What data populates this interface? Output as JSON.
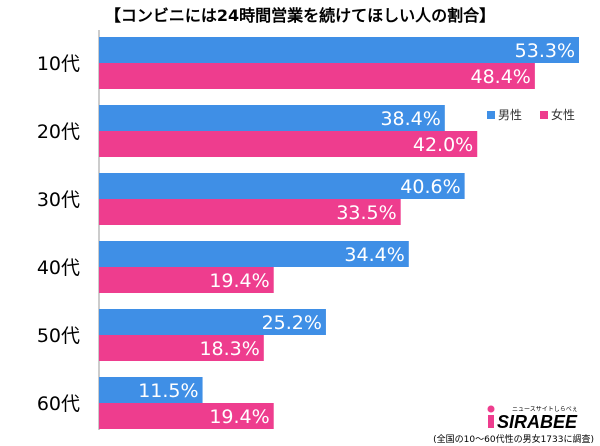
{
  "chart_data": {
    "type": "bar",
    "orientation": "horizontal",
    "title": "【コンビニには24時間営業を続けてほしい人の割合】",
    "categories": [
      "10代",
      "20代",
      "30代",
      "40代",
      "50代",
      "60代"
    ],
    "series": [
      {
        "name": "男性",
        "color": "#3f8fe6",
        "values": [
          53.3,
          38.4,
          40.6,
          34.4,
          25.2,
          11.5
        ],
        "labels": [
          "53.3%",
          "38.4%",
          "40.6%",
          "34.4%",
          "25.2%",
          "11.5%"
        ]
      },
      {
        "name": "女性",
        "color": "#ee3d8e",
        "values": [
          48.4,
          42.0,
          33.5,
          19.4,
          18.3,
          19.4
        ],
        "labels": [
          "48.4%",
          "42.0%",
          "33.5%",
          "19.4%",
          "18.3%",
          "19.4%"
        ]
      }
    ],
    "xlim": [
      0,
      60
    ],
    "legend_position": "top-right",
    "grid": false
  },
  "branding": {
    "logo_text": "SIRABEE",
    "logo_subtext": "ニュースサイトしらべぇ"
  },
  "footnote": "(全国の10～60代性の男女1733に調査)"
}
